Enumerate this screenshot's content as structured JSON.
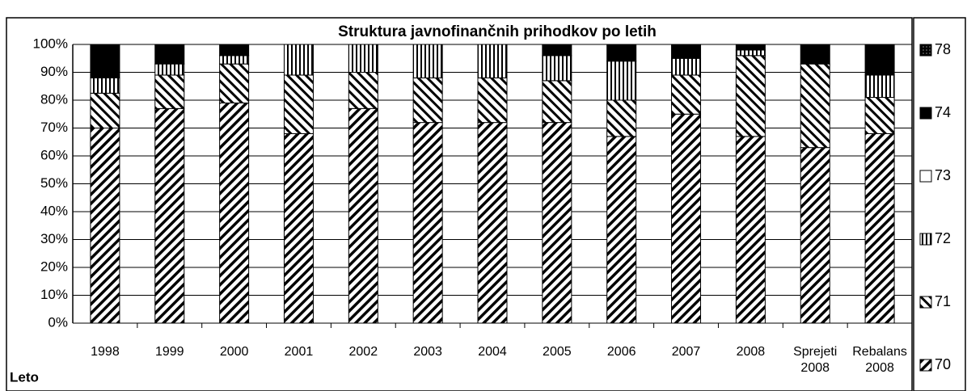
{
  "chart_data": {
    "type": "stacked_bar_100",
    "title": "Struktura javnofinančnih prihodkov po letih",
    "x_label": "Leto",
    "categories": [
      "1998",
      "1999",
      "2000",
      "2001",
      "2002",
      "2003",
      "2004",
      "2005",
      "2006",
      "2007",
      "2008",
      "Sprejeti 2008",
      "Rebalans 2008"
    ],
    "series": [
      {
        "name": "70",
        "color": "#000000",
        "pattern": "diagonal-up",
        "values": [
          70,
          77,
          79,
          68,
          77,
          72,
          72,
          72,
          67,
          75,
          67,
          63,
          68
        ]
      },
      {
        "name": "71",
        "color": "#000000",
        "pattern": "diagonal-down",
        "values": [
          12.5,
          12,
          14,
          21,
          13,
          16,
          16,
          15,
          13,
          14,
          29,
          30,
          13
        ]
      },
      {
        "name": "72",
        "color": "#000000",
        "pattern": "vertical",
        "values": [
          5.5,
          4,
          3,
          11,
          10,
          12,
          12,
          9,
          14,
          6,
          2,
          0,
          8
        ]
      },
      {
        "name": "73",
        "color": "#ffffff",
        "pattern": "none",
        "values": [
          0,
          0,
          0,
          0,
          0,
          0,
          0,
          0,
          0,
          0,
          0,
          0,
          0
        ]
      },
      {
        "name": "74",
        "color": "#000000",
        "pattern": "solid",
        "values": [
          12,
          7,
          4,
          0,
          0,
          0,
          0,
          4,
          6,
          5,
          2,
          7,
          11
        ]
      },
      {
        "name": "78",
        "color": "#000000",
        "pattern": "grid",
        "values": [
          0,
          0,
          0,
          0,
          0,
          0,
          0,
          0,
          0,
          0,
          0,
          0,
          0
        ]
      }
    ],
    "ylim": [
      0,
      100
    ],
    "yticks": [
      {
        "value": 0,
        "label": "0%"
      },
      {
        "value": 10,
        "label": "10%"
      },
      {
        "value": 20,
        "label": "20%"
      },
      {
        "value": 30,
        "label": "30%"
      },
      {
        "value": 40,
        "label": "40%"
      },
      {
        "value": 50,
        "label": "50%"
      },
      {
        "value": 60,
        "label": "60%"
      },
      {
        "value": 70,
        "label": "70%"
      },
      {
        "value": 80,
        "label": "80%"
      },
      {
        "value": 90,
        "label": "90%"
      },
      {
        "value": 100,
        "label": "100%"
      }
    ],
    "grid": true,
    "legend": "right"
  }
}
